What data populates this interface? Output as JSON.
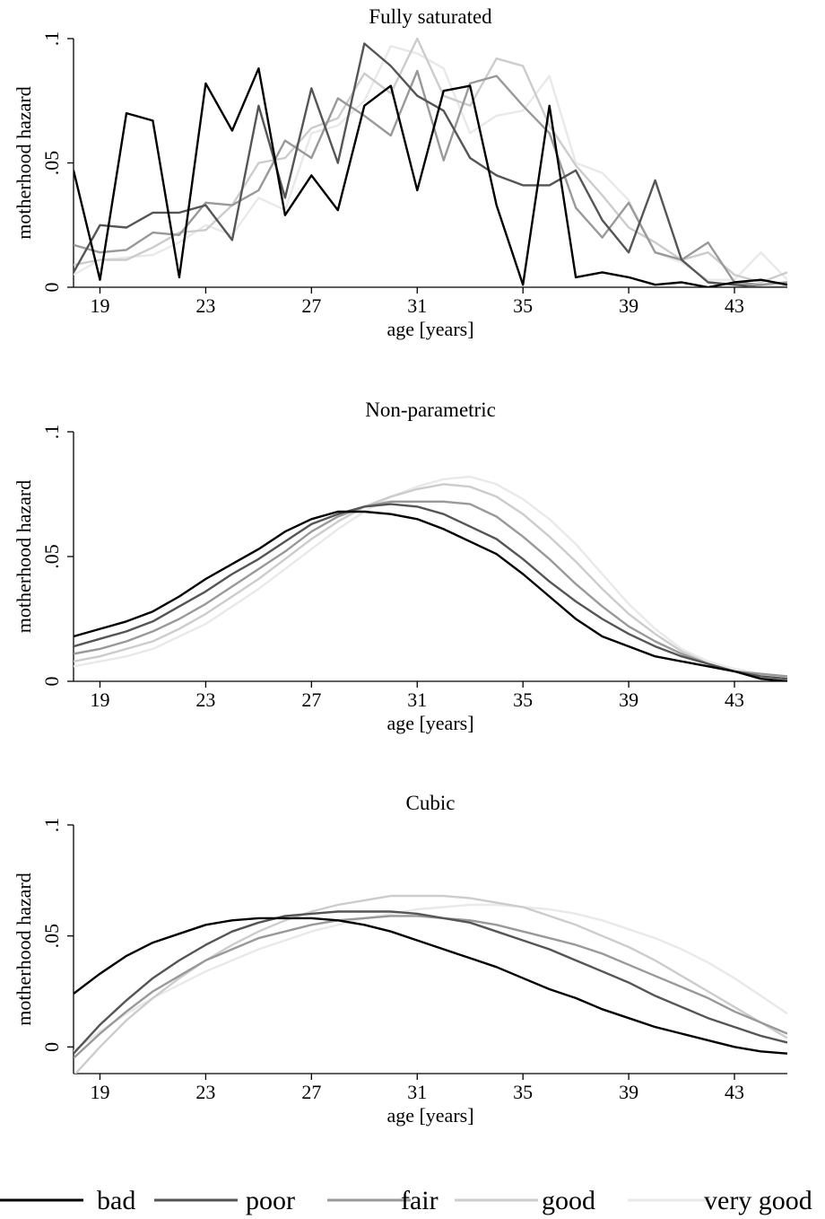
{
  "legend": {
    "position": "bottom",
    "entries": [
      {
        "label": "bad",
        "color": "#000000"
      },
      {
        "label": "poor",
        "color": "#555555"
      },
      {
        "label": "fair",
        "color": "#999999"
      },
      {
        "label": "good",
        "color": "#cccccc"
      },
      {
        "label": "very good",
        "color": "#e9e9e9"
      }
    ]
  },
  "chart_data": [
    {
      "type": "line",
      "title": "Fully saturated",
      "xlabel": "age [years]",
      "ylabel": "motherhood hazard",
      "xlim": [
        18,
        45
      ],
      "ylim": [
        0,
        0.1
      ],
      "xticks": [
        19,
        23,
        27,
        31,
        35,
        39,
        43
      ],
      "xtick_labels": [
        "19",
        "23",
        "27",
        "31",
        "35",
        "39",
        "43"
      ],
      "yticks": [
        0,
        0.05,
        0.1
      ],
      "ytick_labels": [
        "0",
        ".05",
        ".1"
      ],
      "grid": false,
      "x": [
        18,
        19,
        20,
        21,
        22,
        23,
        24,
        25,
        26,
        27,
        28,
        29,
        30,
        31,
        32,
        33,
        34,
        35,
        36,
        37,
        38,
        39,
        40,
        41,
        42,
        43,
        44,
        45
      ],
      "series": [
        {
          "name": "bad",
          "color": "#000000",
          "values": [
            0.047,
            0.003,
            0.07,
            0.067,
            0.004,
            0.082,
            0.063,
            0.088,
            0.029,
            0.045,
            0.031,
            0.073,
            0.081,
            0.039,
            0.079,
            0.081,
            0.033,
            0.001,
            0.073,
            0.004,
            0.006,
            0.004,
            0.001,
            0.002,
            0.0,
            0.002,
            0.003,
            0.001
          ]
        },
        {
          "name": "poor",
          "color": "#555555",
          "values": [
            0.006,
            0.025,
            0.024,
            0.03,
            0.03,
            0.033,
            0.019,
            0.073,
            0.036,
            0.08,
            0.05,
            0.098,
            0.089,
            0.077,
            0.071,
            0.052,
            0.045,
            0.041,
            0.041,
            0.047,
            0.027,
            0.014,
            0.043,
            0.011,
            0.002,
            0.001,
            0.0,
            0.0
          ]
        },
        {
          "name": "fair",
          "color": "#999999",
          "values": [
            0.017,
            0.014,
            0.015,
            0.022,
            0.021,
            0.034,
            0.033,
            0.039,
            0.059,
            0.052,
            0.076,
            0.069,
            0.061,
            0.087,
            0.051,
            0.082,
            0.085,
            0.073,
            0.062,
            0.032,
            0.02,
            0.034,
            0.014,
            0.011,
            0.018,
            0.002,
            0.001,
            0.002
          ]
        },
        {
          "name": "good",
          "color": "#cccccc",
          "values": [
            0.009,
            0.011,
            0.011,
            0.016,
            0.022,
            0.023,
            0.033,
            0.05,
            0.052,
            0.064,
            0.068,
            0.086,
            0.078,
            0.1,
            0.077,
            0.073,
            0.092,
            0.089,
            0.065,
            0.049,
            0.037,
            0.024,
            0.018,
            0.011,
            0.014,
            0.005,
            0.002,
            0.006
          ]
        },
        {
          "name": "very good",
          "color": "#e9e9e9",
          "values": [
            0.005,
            0.011,
            0.012,
            0.013,
            0.018,
            0.025,
            0.021,
            0.036,
            0.031,
            0.062,
            0.065,
            0.075,
            0.097,
            0.094,
            0.088,
            0.062,
            0.069,
            0.071,
            0.085,
            0.05,
            0.046,
            0.035,
            0.014,
            0.01,
            0.003,
            0.003,
            0.014,
            0.003
          ]
        }
      ]
    },
    {
      "type": "line",
      "title": "Non-parametric",
      "xlabel": "age [years]",
      "ylabel": "motherhood hazard",
      "xlim": [
        18,
        45
      ],
      "ylim": [
        0,
        0.1
      ],
      "xticks": [
        19,
        23,
        27,
        31,
        35,
        39,
        43
      ],
      "xtick_labels": [
        "19",
        "23",
        "27",
        "31",
        "35",
        "39",
        "43"
      ],
      "yticks": [
        0,
        0.05,
        0.1
      ],
      "ytick_labels": [
        "0",
        ".05",
        ".1"
      ],
      "grid": false,
      "x": [
        18,
        19,
        20,
        21,
        22,
        23,
        24,
        25,
        26,
        27,
        28,
        29,
        30,
        31,
        32,
        33,
        34,
        35,
        36,
        37,
        38,
        39,
        40,
        41,
        42,
        43,
        44,
        45
      ],
      "series": [
        {
          "name": "bad",
          "color": "#000000",
          "values": [
            0.018,
            0.021,
            0.024,
            0.028,
            0.034,
            0.041,
            0.047,
            0.053,
            0.06,
            0.065,
            0.068,
            0.068,
            0.067,
            0.065,
            0.061,
            0.056,
            0.051,
            0.043,
            0.034,
            0.025,
            0.018,
            0.014,
            0.01,
            0.008,
            0.006,
            0.004,
            0.001,
            0.0
          ]
        },
        {
          "name": "poor",
          "color": "#555555",
          "values": [
            0.014,
            0.017,
            0.02,
            0.024,
            0.03,
            0.036,
            0.043,
            0.049,
            0.056,
            0.063,
            0.067,
            0.07,
            0.071,
            0.07,
            0.067,
            0.062,
            0.057,
            0.049,
            0.04,
            0.032,
            0.025,
            0.019,
            0.014,
            0.01,
            0.007,
            0.004,
            0.002,
            0.001
          ]
        },
        {
          "name": "fair",
          "color": "#999999",
          "values": [
            0.011,
            0.013,
            0.016,
            0.02,
            0.025,
            0.031,
            0.038,
            0.045,
            0.052,
            0.06,
            0.066,
            0.07,
            0.072,
            0.072,
            0.072,
            0.071,
            0.066,
            0.058,
            0.049,
            0.039,
            0.03,
            0.022,
            0.016,
            0.011,
            0.007,
            0.004,
            0.003,
            0.002
          ]
        },
        {
          "name": "good",
          "color": "#cccccc",
          "values": [
            0.008,
            0.01,
            0.013,
            0.016,
            0.021,
            0.027,
            0.034,
            0.041,
            0.049,
            0.057,
            0.064,
            0.07,
            0.074,
            0.077,
            0.079,
            0.078,
            0.074,
            0.067,
            0.058,
            0.048,
            0.037,
            0.027,
            0.019,
            0.012,
            0.007,
            0.004,
            0.003,
            0.002
          ]
        },
        {
          "name": "very good",
          "color": "#e9e9e9",
          "values": [
            0.006,
            0.008,
            0.01,
            0.013,
            0.018,
            0.023,
            0.03,
            0.037,
            0.045,
            0.053,
            0.061,
            0.068,
            0.074,
            0.078,
            0.081,
            0.082,
            0.079,
            0.073,
            0.065,
            0.055,
            0.043,
            0.031,
            0.021,
            0.013,
            0.008,
            0.005,
            0.003,
            0.002
          ]
        }
      ]
    },
    {
      "type": "line",
      "title": "Cubic",
      "xlabel": "age [years]",
      "ylabel": "motherhood hazard",
      "xlim": [
        18,
        45
      ],
      "ylim": [
        -0.012,
        0.1
      ],
      "xticks": [
        19,
        23,
        27,
        31,
        35,
        39,
        43
      ],
      "xtick_labels": [
        "19",
        "23",
        "27",
        "31",
        "35",
        "39",
        "43"
      ],
      "yticks": [
        0,
        0.05,
        0.1
      ],
      "ytick_labels": [
        "0",
        ".05",
        ".1"
      ],
      "grid": false,
      "x": [
        18,
        19,
        20,
        21,
        22,
        23,
        24,
        25,
        26,
        27,
        28,
        29,
        30,
        31,
        32,
        33,
        34,
        35,
        36,
        37,
        38,
        39,
        40,
        41,
        42,
        43,
        44,
        45
      ],
      "series": [
        {
          "name": "bad",
          "color": "#000000",
          "values": [
            0.024,
            0.033,
            0.041,
            0.047,
            0.051,
            0.055,
            0.057,
            0.058,
            0.058,
            0.058,
            0.057,
            0.055,
            0.052,
            0.048,
            0.044,
            0.04,
            0.036,
            0.031,
            0.026,
            0.022,
            0.017,
            0.013,
            0.009,
            0.006,
            0.003,
            0.0,
            -0.002,
            -0.003
          ]
        },
        {
          "name": "poor",
          "color": "#555555",
          "values": [
            -0.003,
            0.01,
            0.021,
            0.031,
            0.039,
            0.046,
            0.052,
            0.056,
            0.059,
            0.06,
            0.061,
            0.061,
            0.061,
            0.06,
            0.058,
            0.056,
            0.052,
            0.048,
            0.044,
            0.039,
            0.034,
            0.029,
            0.023,
            0.018,
            0.013,
            0.009,
            0.005,
            0.002
          ]
        },
        {
          "name": "fair",
          "color": "#999999",
          "values": [
            -0.005,
            0.006,
            0.016,
            0.025,
            0.032,
            0.039,
            0.044,
            0.049,
            0.052,
            0.055,
            0.057,
            0.058,
            0.059,
            0.059,
            0.058,
            0.057,
            0.055,
            0.052,
            0.049,
            0.046,
            0.042,
            0.037,
            0.032,
            0.027,
            0.022,
            0.016,
            0.011,
            0.006
          ]
        },
        {
          "name": "good",
          "color": "#cccccc",
          "values": [
            -0.013,
            0.0,
            0.012,
            0.022,
            0.031,
            0.039,
            0.046,
            0.052,
            0.057,
            0.061,
            0.064,
            0.066,
            0.068,
            0.068,
            0.068,
            0.067,
            0.065,
            0.063,
            0.059,
            0.055,
            0.05,
            0.045,
            0.039,
            0.032,
            0.025,
            0.018,
            0.011,
            0.004
          ]
        },
        {
          "name": "very good",
          "color": "#e9e9e9",
          "values": [
            -0.002,
            0.007,
            0.015,
            0.022,
            0.028,
            0.034,
            0.039,
            0.044,
            0.048,
            0.052,
            0.055,
            0.058,
            0.06,
            0.062,
            0.063,
            0.064,
            0.064,
            0.063,
            0.062,
            0.06,
            0.057,
            0.053,
            0.049,
            0.044,
            0.038,
            0.031,
            0.023,
            0.015
          ]
        }
      ]
    }
  ]
}
